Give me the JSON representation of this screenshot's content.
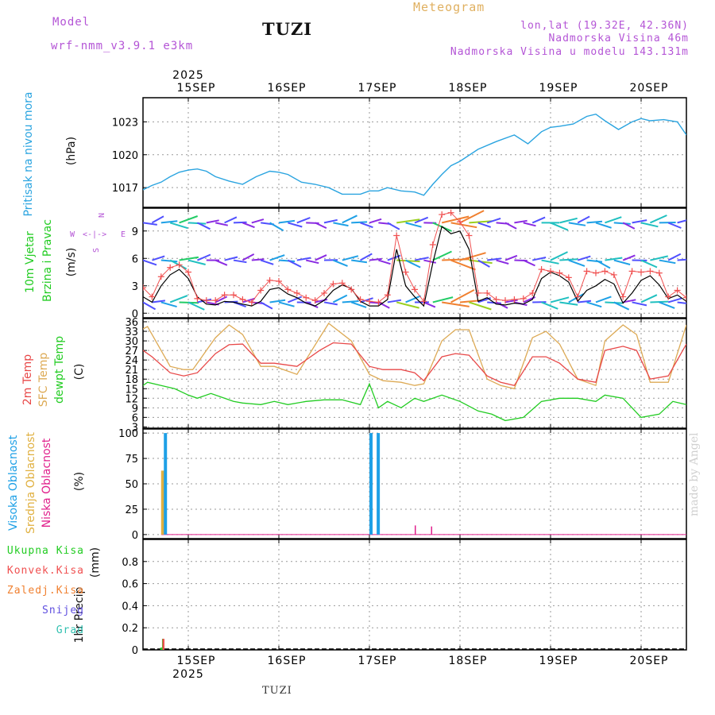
{
  "header": {
    "model_label": "Model",
    "model_name": "wrf-nmm_v3.9.1  e3km",
    "station": "TUZI",
    "title": "Meteogram",
    "lonlat": "lon,lat (19.32E, 42.36N)",
    "elevation": "Nadmorska Visina 46m",
    "elevation_model": "Nadmorska Visina u modelu 143.131m"
  },
  "footer": {
    "station": "TUZI",
    "credit": "made by Angel"
  },
  "colors": {
    "pressure": "#2aa4e0",
    "wind_speed": "#000000",
    "gust": "#f05050",
    "temp2m": "#e84848",
    "sfc_temp": "#ddaa55",
    "dewpt": "#22cc22",
    "cloud_high": "#1ea0e6",
    "cloud_mid": "#e0b040",
    "cloud_low": "#e0208c",
    "precip_total": "#22cc22",
    "precip_conv": "#f05050",
    "precip_frz": "#f08030",
    "precip_snow": "#6050e0",
    "precip_grad": "#30c0b0",
    "grid": "#999999"
  },
  "chart_data": {
    "type": "meteogram",
    "time_axis": {
      "year": "2025",
      "days": [
        "15SEP",
        "16SEP",
        "17SEP",
        "18SEP",
        "19SEP",
        "20SEP"
      ],
      "x_range_days": [
        -0.6,
        5.5
      ]
    },
    "panels": {
      "pressure": {
        "ylabel": "Pritisak na nivou mora",
        "unit": "(hPa)",
        "ylim": [
          1015.2,
          1025.2
        ],
        "ticks": [
          1017,
          1020,
          1023
        ],
        "series": {
          "t": [
            -0.6,
            -0.5,
            -0.4,
            -0.3,
            -0.2,
            -0.1,
            0.0,
            0.1,
            0.2,
            0.3,
            0.45,
            0.6,
            0.75,
            0.9,
            1.0,
            1.1,
            1.25,
            1.4,
            1.55,
            1.7,
            1.9,
            2.0,
            2.1,
            2.2,
            2.35,
            2.5,
            2.6,
            2.7,
            2.8,
            2.9,
            3.0,
            3.2,
            3.4,
            3.6,
            3.75,
            3.9,
            4.0,
            4.1,
            4.25,
            4.4,
            4.5,
            4.6,
            4.75,
            4.9,
            5.0,
            5.1,
            5.25,
            5.4,
            5.5
          ],
          "v": [
            1017.6,
            1016.8,
            1017.2,
            1017.5,
            1018.0,
            1018.4,
            1018.6,
            1018.7,
            1018.5,
            1018.0,
            1017.6,
            1017.3,
            1018.0,
            1018.5,
            1018.4,
            1018.2,
            1017.5,
            1017.3,
            1017.0,
            1016.4,
            1016.4,
            1016.7,
            1016.7,
            1017.0,
            1016.7,
            1016.6,
            1016.3,
            1017.3,
            1018.2,
            1019.0,
            1019.4,
            1020.5,
            1021.2,
            1021.8,
            1021.0,
            1022.1,
            1022.5,
            1022.6,
            1022.8,
            1023.5,
            1023.7,
            1023.1,
            1022.3,
            1023.0,
            1023.3,
            1023.1,
            1023.2,
            1023.0,
            1021.8
          ]
        }
      },
      "wind": {
        "ylabel": "10m Vjetar Brzina i Pravac",
        "unit": "(m/s)",
        "ylim": [
          -0.5,
          11.5
        ],
        "ticks": [
          0,
          3,
          6,
          9
        ],
        "compass": {
          "w": "W",
          "e": "E",
          "n": "N",
          "s": "S",
          "arrows": "<-|->"
        },
        "speed": {
          "t": [
            -0.5,
            -0.4,
            -0.3,
            -0.2,
            -0.1,
            0.0,
            0.1,
            0.2,
            0.3,
            0.4,
            0.5,
            0.6,
            0.7,
            0.8,
            0.9,
            1.0,
            1.1,
            1.2,
            1.3,
            1.4,
            1.5,
            1.6,
            1.7,
            1.8,
            1.9,
            2.0,
            2.1,
            2.2,
            2.3,
            2.4,
            2.5,
            2.6,
            2.7,
            2.8,
            2.9,
            3.0,
            3.1,
            3.2,
            3.3,
            3.4,
            3.5,
            3.6,
            3.7,
            3.8,
            3.9,
            4.0,
            4.1,
            4.2,
            4.3,
            4.4,
            4.5,
            4.6,
            4.7,
            4.8,
            4.9,
            5.0,
            5.1,
            5.2,
            5.3,
            5.4,
            5.5
          ],
          "v": [
            1.8,
            1.2,
            3.0,
            4.2,
            4.8,
            3.8,
            1.8,
            1.0,
            0.9,
            1.3,
            1.2,
            1.0,
            0.8,
            1.3,
            2.6,
            2.8,
            2.1,
            1.7,
            1.1,
            0.8,
            1.4,
            2.5,
            3.1,
            2.7,
            1.3,
            0.8,
            0.8,
            1.5,
            7.0,
            3.0,
            1.8,
            0.8,
            5.5,
            9.5,
            8.7,
            9.0,
            7.0,
            1.3,
            1.7,
            1.0,
            0.9,
            1.1,
            1.0,
            1.5,
            3.8,
            4.5,
            4.1,
            3.4,
            1.3,
            2.5,
            3.0,
            3.7,
            3.2,
            1.1,
            2.2,
            3.6,
            4.1,
            3.1,
            1.6,
            2.0,
            1.3
          ]
        },
        "gust": {
          "t": [
            -0.5,
            -0.4,
            -0.3,
            -0.2,
            -0.1,
            0.0,
            0.1,
            0.2,
            0.3,
            0.4,
            0.5,
            0.6,
            0.7,
            0.8,
            0.9,
            1.0,
            1.1,
            1.2,
            1.3,
            1.4,
            1.5,
            1.6,
            1.7,
            1.8,
            1.9,
            2.0,
            2.1,
            2.2,
            2.3,
            2.4,
            2.5,
            2.6,
            2.7,
            2.8,
            2.9,
            3.0,
            3.1,
            3.2,
            3.3,
            3.4,
            3.5,
            3.6,
            3.7,
            3.8,
            3.9,
            4.0,
            4.1,
            4.2,
            4.3,
            4.4,
            4.5,
            4.6,
            4.7,
            4.8,
            4.9,
            5.0,
            5.1,
            5.2,
            5.3,
            5.4,
            5.5
          ],
          "v": [
            2.8,
            1.8,
            4.0,
            5.0,
            5.3,
            4.5,
            1.6,
            1.4,
            1.4,
            2.0,
            2.0,
            1.5,
            1.2,
            2.5,
            3.6,
            3.5,
            2.6,
            2.2,
            1.7,
            1.4,
            2.2,
            3.2,
            3.3,
            2.6,
            1.5,
            1.3,
            1.2,
            2.0,
            8.5,
            4.5,
            2.6,
            1.3,
            7.5,
            10.8,
            11.0,
            10.0,
            8.5,
            2.2,
            2.2,
            1.5,
            1.4,
            1.5,
            1.6,
            2.2,
            4.8,
            4.6,
            4.4,
            3.9,
            1.8,
            4.6,
            4.4,
            4.6,
            4.2,
            1.8,
            4.6,
            4.5,
            4.6,
            4.4,
            1.8,
            2.5,
            1.7
          ]
        },
        "barb_rows": [
          1.2,
          5.8,
          9.9
        ]
      },
      "temperature": {
        "ylabels": [
          "2m Temp",
          "SFC Temp",
          "dewpt Temp"
        ],
        "unit": "(C)",
        "ylim": [
          2.6,
          37.0
        ],
        "ticks": [
          3,
          6,
          9,
          12,
          15,
          18,
          21,
          24,
          27,
          30,
          33,
          36
        ],
        "temp2m": {
          "t": [
            -0.55,
            -0.4,
            -0.2,
            -0.05,
            0.1,
            0.3,
            0.45,
            0.6,
            0.8,
            0.95,
            1.2,
            1.45,
            1.6,
            1.8,
            2.0,
            2.15,
            2.35,
            2.5,
            2.6,
            2.8,
            2.95,
            3.1,
            3.3,
            3.45,
            3.6,
            3.8,
            3.95,
            4.1,
            4.3,
            4.5,
            4.6,
            4.8,
            4.95,
            5.1,
            5.3,
            5.5
          ],
          "v": [
            28,
            25,
            20,
            19,
            20,
            26,
            28.8,
            29,
            23,
            23,
            22,
            27,
            29.4,
            29,
            22,
            21,
            21,
            20,
            17.5,
            25,
            26,
            25.5,
            19,
            17,
            16,
            25,
            25,
            23,
            18,
            17,
            27,
            28.3,
            27,
            18,
            19,
            29
          ]
        },
        "sfc_temp": {
          "t": [
            -0.55,
            -0.45,
            -0.2,
            -0.05,
            0.05,
            0.3,
            0.45,
            0.6,
            0.8,
            0.95,
            1.2,
            1.45,
            1.55,
            1.8,
            2.0,
            2.15,
            2.35,
            2.5,
            2.6,
            2.8,
            2.95,
            3.1,
            3.3,
            3.45,
            3.6,
            3.8,
            3.95,
            4.1,
            4.3,
            4.5,
            4.6,
            4.8,
            4.95,
            5.1,
            5.3,
            5.5
          ],
          "v": [
            33,
            34.5,
            22,
            21,
            21,
            31,
            35,
            32,
            22,
            22,
            19.5,
            31,
            35.5,
            30,
            19.5,
            17.5,
            17,
            16,
            16.5,
            30,
            33.5,
            33.5,
            18,
            16,
            15,
            31,
            33,
            29,
            18,
            16,
            30,
            35,
            32,
            17,
            17,
            35
          ]
        },
        "dewpt": {
          "t": [
            -0.55,
            -0.45,
            -0.3,
            -0.15,
            0.0,
            0.1,
            0.25,
            0.4,
            0.5,
            0.6,
            0.8,
            0.95,
            1.1,
            1.3,
            1.5,
            1.7,
            1.9,
            2.0,
            2.1,
            2.2,
            2.35,
            2.5,
            2.6,
            2.8,
            3.0,
            3.2,
            3.35,
            3.5,
            3.7,
            3.9,
            4.1,
            4.3,
            4.5,
            4.6,
            4.8,
            5.0,
            5.2,
            5.35,
            5.5
          ],
          "v": [
            15,
            17,
            16,
            15,
            13,
            12,
            13.5,
            12,
            11,
            10.5,
            10,
            11,
            10,
            11,
            11.5,
            11.5,
            10,
            16.5,
            9,
            11,
            9,
            12,
            11,
            13,
            11,
            8,
            7,
            5,
            6,
            11,
            12,
            12,
            11,
            13,
            12,
            6,
            7,
            11,
            10
          ]
        }
      },
      "clouds": {
        "ylabels": [
          "Visoka Oblacnost",
          "Srednja Oblacnost",
          "Niska Oblacnost"
        ],
        "unit": "(%)",
        "ylim": [
          -4,
          104
        ],
        "ticks": [
          0,
          25,
          50,
          75,
          100
        ],
        "bars": [
          {
            "t": -0.3,
            "layer": "mid",
            "v": 63
          },
          {
            "t": -0.27,
            "layer": "high",
            "v": 100
          },
          {
            "t": 2.0,
            "layer": "high",
            "v": 100
          },
          {
            "t": 2.08,
            "layer": "high",
            "v": 100
          },
          {
            "t": 2.5,
            "layer": "low",
            "v": 9
          },
          {
            "t": 2.68,
            "layer": "low",
            "v": 8
          }
        ]
      },
      "precip": {
        "ylabel": "1hr Precip",
        "unit": "(mm)",
        "ylim": [
          0,
          1.0
        ],
        "ticks": [
          0,
          0.2,
          0.4,
          0.6,
          0.8
        ],
        "legend": [
          "Ukupna Kisa",
          "Konvek.Kisa",
          "Zaledj.Kisa",
          "Snijeg",
          "Grad"
        ],
        "bars": [
          {
            "t": -0.31,
            "type": "total",
            "v": 0.02
          },
          {
            "t": -0.29,
            "type": "total",
            "v": 0.1
          },
          {
            "t": -0.285,
            "type": "conv",
            "v": 0.1
          }
        ]
      }
    }
  }
}
